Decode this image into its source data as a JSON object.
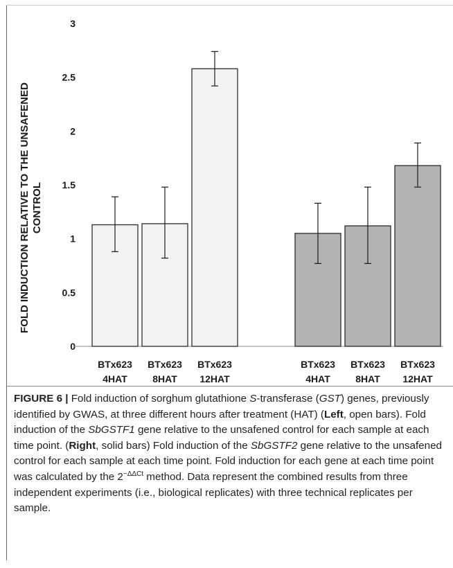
{
  "chart_data": {
    "type": "bar",
    "title": "",
    "ylabel_lines": [
      "FOLD INDUCTION RELATIVE TO THE UNSAFENED",
      "CONTROL"
    ],
    "xlabel": "",
    "ylim": [
      0,
      3
    ],
    "yticks": [
      {
        "value": 0,
        "label": "0"
      },
      {
        "value": 0.5,
        "label": "0.5"
      },
      {
        "value": 1,
        "label": "1"
      },
      {
        "value": 1.5,
        "label": "1.5"
      },
      {
        "value": 2,
        "label": "2"
      },
      {
        "value": 2.5,
        "label": "2.5"
      },
      {
        "value": 3,
        "label": "3"
      }
    ],
    "grid": false,
    "legend": "none",
    "groups": [
      {
        "gene": "SbGSTF1",
        "style": "open",
        "fill": "#f2f2f2",
        "bars": [
          {
            "label": [
              "BTx623",
              "4HAT"
            ],
            "value": 1.13,
            "err_low": 0.88,
            "err_high": 1.39
          },
          {
            "label": [
              "BTx623",
              "8HAT"
            ],
            "value": 1.14,
            "err_low": 0.82,
            "err_high": 1.48
          },
          {
            "label": [
              "BTx623",
              "12HAT"
            ],
            "value": 2.58,
            "err_low": 2.42,
            "err_high": 2.74
          }
        ]
      },
      {
        "gene": "SbGSTF2",
        "style": "solid",
        "fill": "#b3b3b3",
        "bars": [
          {
            "label": [
              "BTx623",
              "4HAT"
            ],
            "value": 1.05,
            "err_low": 0.77,
            "err_high": 1.33
          },
          {
            "label": [
              "BTx623",
              "8HAT"
            ],
            "value": 1.12,
            "err_low": 0.77,
            "err_high": 1.48
          },
          {
            "label": [
              "BTx623",
              "12HAT"
            ],
            "value": 1.68,
            "err_low": 1.48,
            "err_high": 1.89
          }
        ]
      }
    ]
  },
  "caption": {
    "fig_label": "FIGURE 6 |",
    "segments": [
      {
        "t": " Fold induction of sorghum glutathione ",
        "s": ""
      },
      {
        "t": "S",
        "s": "i"
      },
      {
        "t": "-transferase (",
        "s": ""
      },
      {
        "t": "GST",
        "s": "i"
      },
      {
        "t": ") genes, previously identified by GWAS, at three different hours after treatment (HAT) (",
        "s": ""
      },
      {
        "t": "Left",
        "s": "b"
      },
      {
        "t": ", open bars). Fold induction of the ",
        "s": ""
      },
      {
        "t": "SbGSTF1",
        "s": "i"
      },
      {
        "t": " gene relative to the unsafened control for each sample at each time point. (",
        "s": ""
      },
      {
        "t": "Right",
        "s": "b"
      },
      {
        "t": ", solid bars) Fold induction of the ",
        "s": ""
      },
      {
        "t": "SbGSTF2",
        "s": "i"
      },
      {
        "t": " gene relative to the unsafened control for each sample at each time point. Fold induction for each gene at each time point was calculated by the 2",
        "s": ""
      },
      {
        "t": "−ΔΔCt",
        "s": "sup"
      },
      {
        "t": " method. Data represent the combined results from three independent experiments (i.e., biological replicates) with three technical replicates per sample.",
        "s": ""
      }
    ]
  }
}
